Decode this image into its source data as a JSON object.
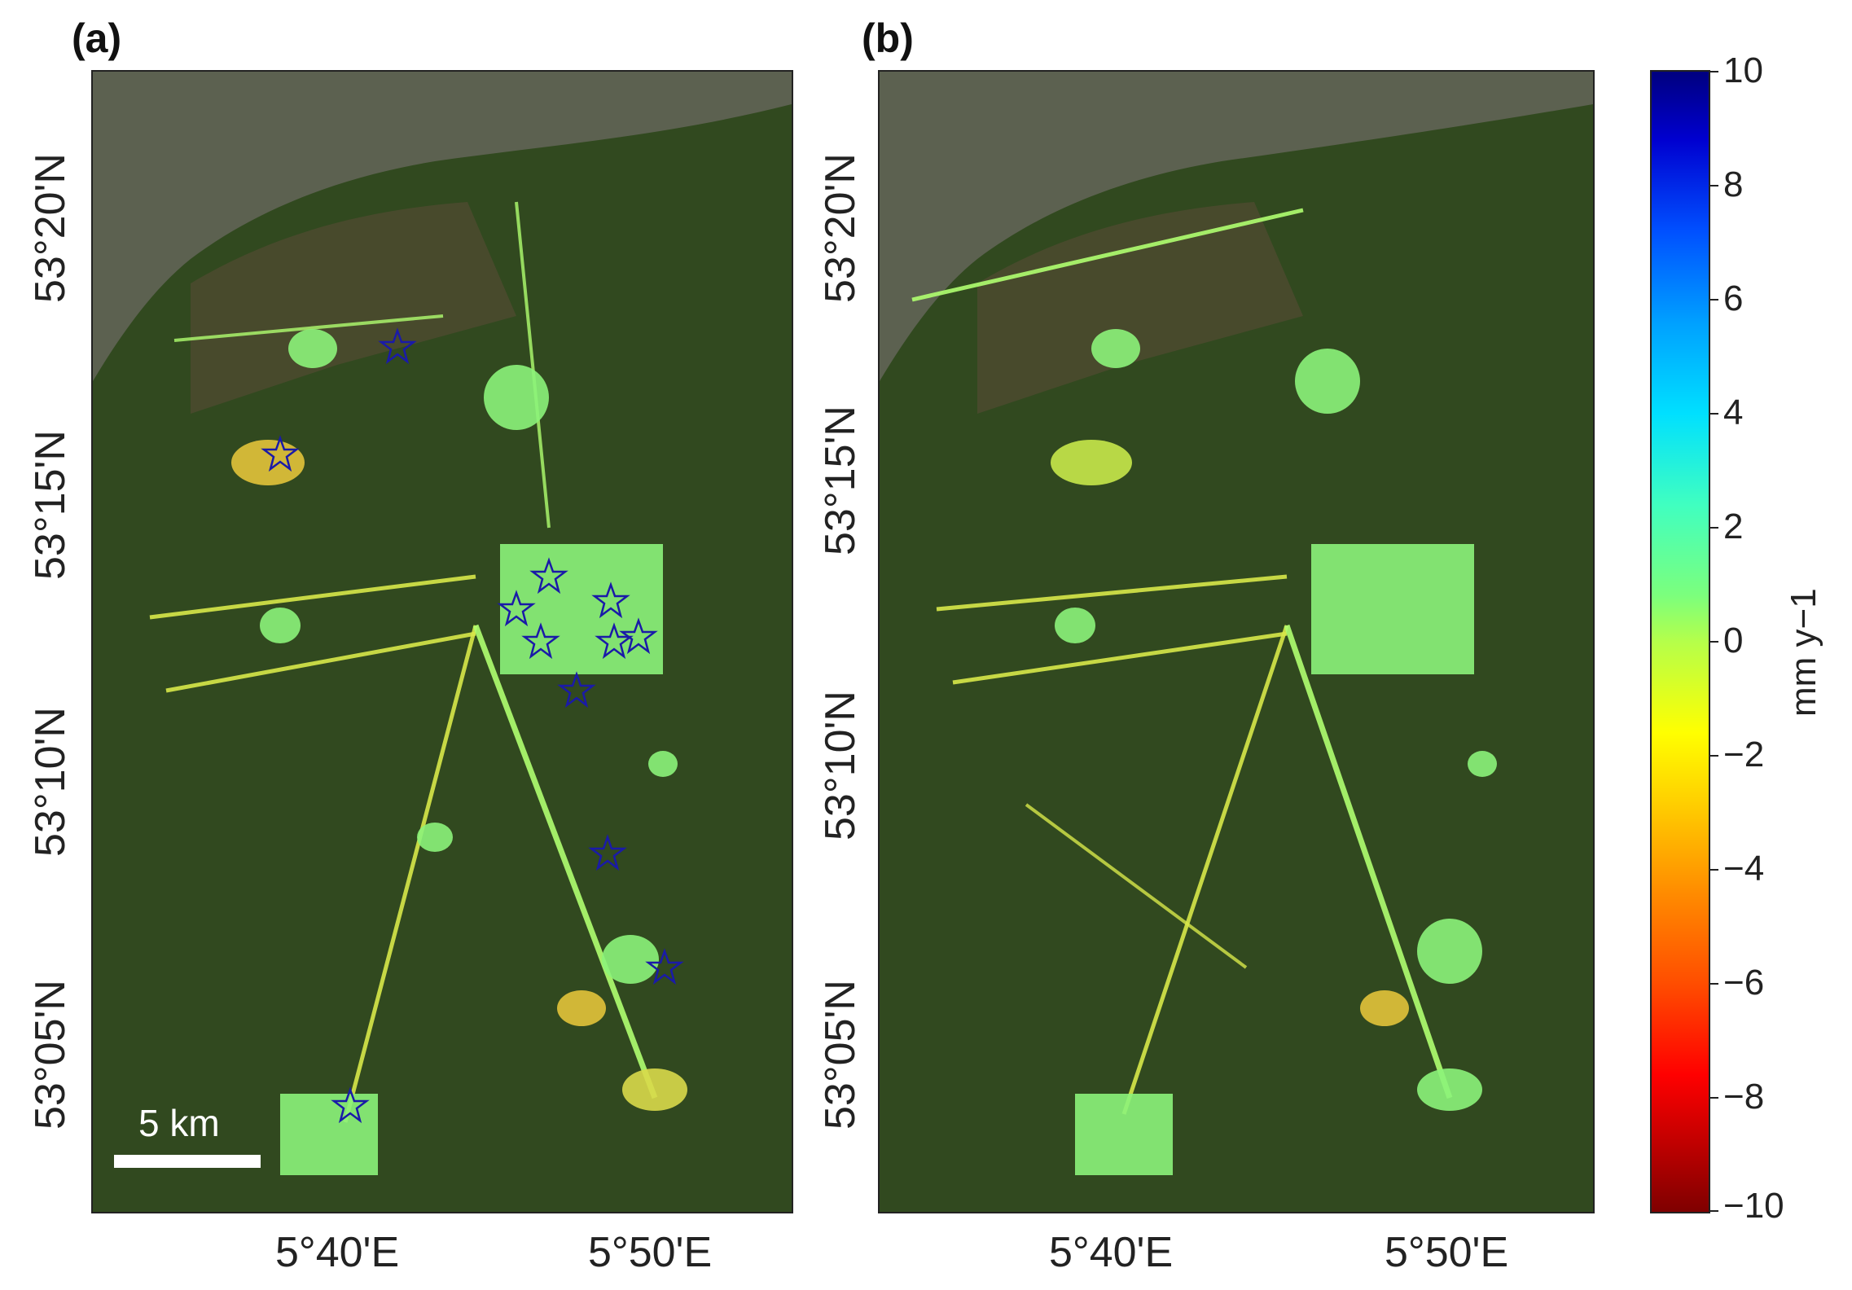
{
  "panels": [
    {
      "label": "(a)"
    },
    {
      "label": "(b)"
    }
  ],
  "axes": {
    "lat_ticks": [
      "53°20'N",
      "53°15'N",
      "53°10'N",
      "53°05'N",
      "53°05'N"
    ],
    "lon_ticks": [
      "5°40'E",
      "5°50'E"
    ]
  },
  "colorbar": {
    "unit": "mm y−1",
    "ticks": [
      "10",
      "8",
      "6",
      "4",
      "2",
      "0",
      "−2",
      "−4",
      "−6",
      "−8",
      "−10"
    ],
    "range": [
      -10,
      10
    ],
    "colormap": "jet"
  },
  "scalebar": {
    "label": "5 km"
  },
  "colors": {
    "sea": "#5a5f4a",
    "land": "#2f4a1f",
    "star": "#1a1aa8"
  }
}
